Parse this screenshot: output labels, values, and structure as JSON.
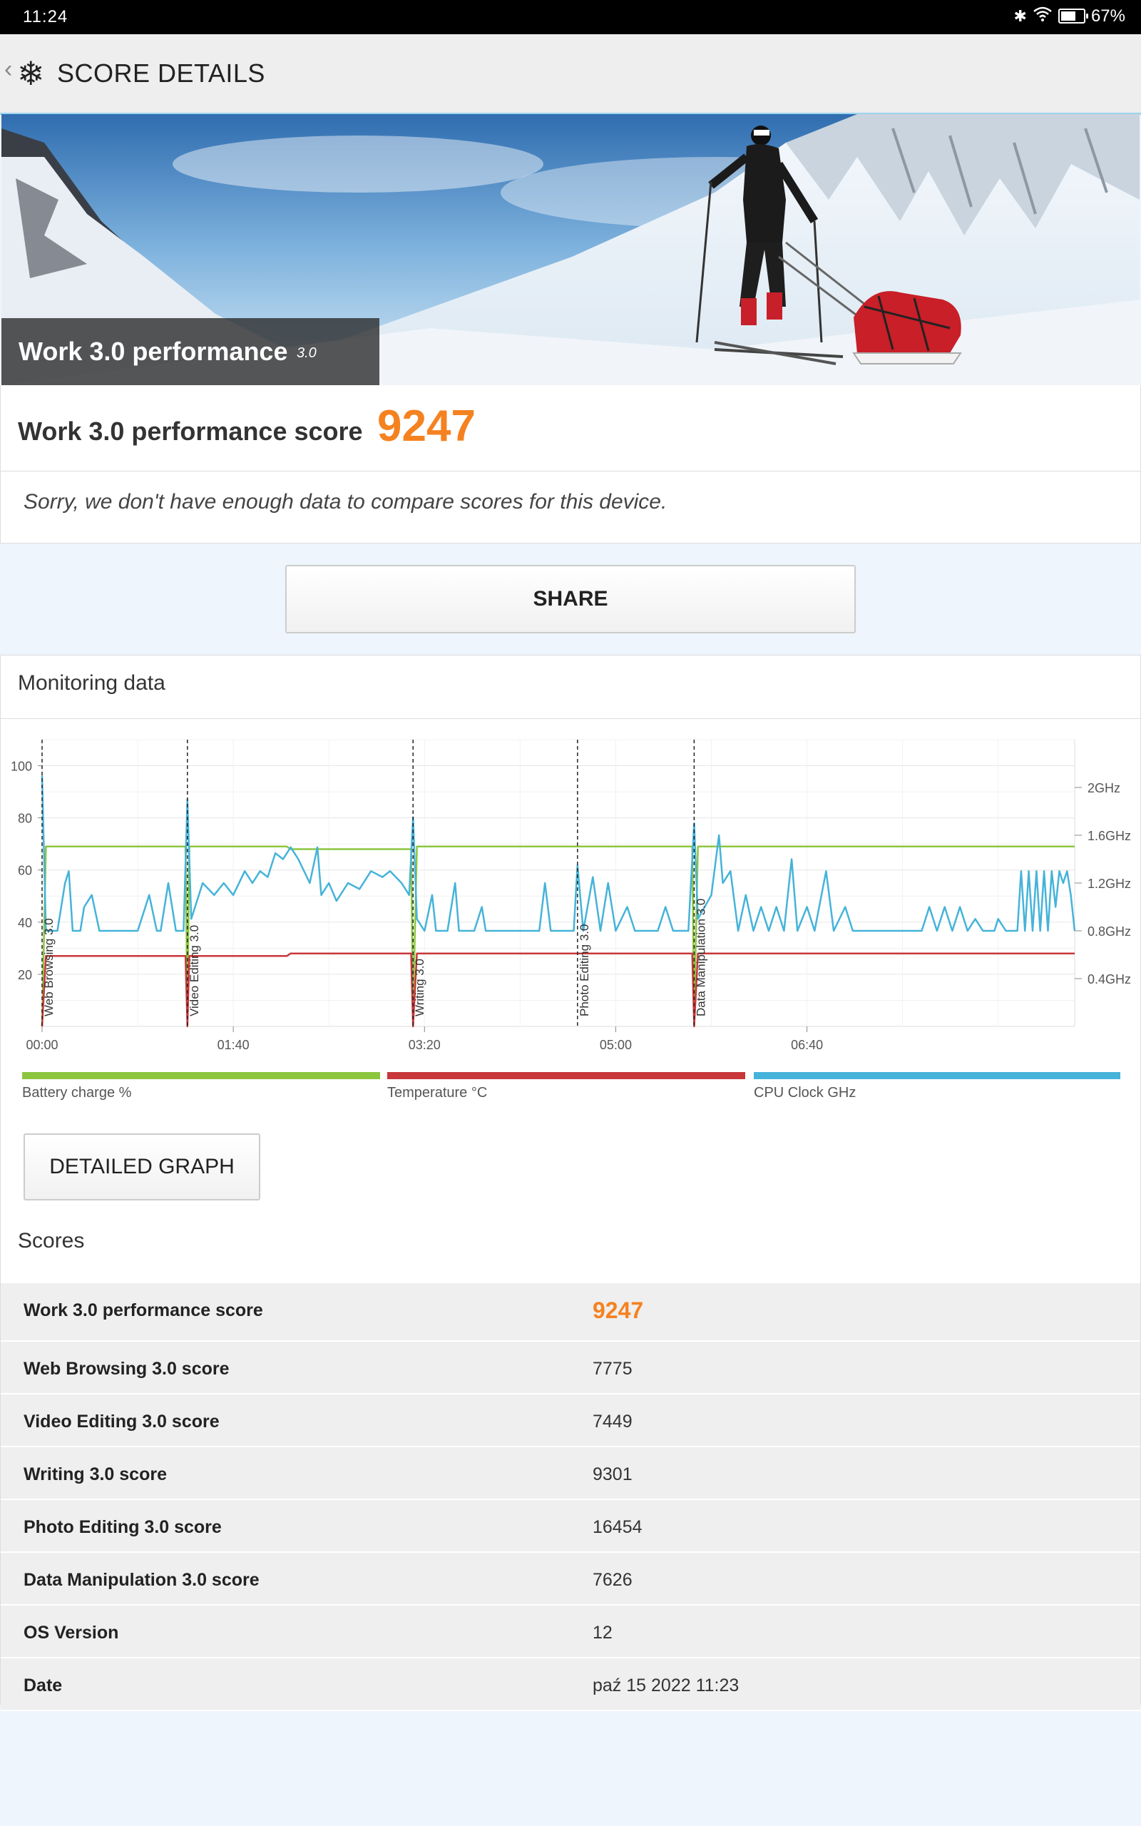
{
  "status_bar": {
    "time": "11:24",
    "battery": "67%",
    "battery_level": 0.67
  },
  "app_bar": {
    "title": "SCORE DETAILS"
  },
  "hero": {
    "title": "Work 3.0 performance",
    "version": "3.0"
  },
  "score": {
    "label": "Work 3.0 performance score",
    "value": "9247"
  },
  "compare_note": "Sorry, we don't have enough data to compare scores for this device.",
  "share_label": "SHARE",
  "monitoring": {
    "title": "Monitoring data"
  },
  "detailed_graph_label": "DETAILED GRAPH",
  "scores_title": "Scores",
  "colors": {
    "accent": "#f58220",
    "battery": "#8cc63f",
    "temperature": "#c8373a",
    "cpu": "#45b3d9"
  },
  "chart_data": {
    "type": "line",
    "x_ticks": [
      "00:00",
      "01:40",
      "03:20",
      "05:00",
      "06:40"
    ],
    "x_range_seconds": [
      0,
      540
    ],
    "y_left_ticks": [
      "100",
      "80",
      "60",
      "40",
      "20"
    ],
    "y_left_range": [
      0,
      110
    ],
    "y_right_ticks": [
      "2GHz",
      "1.6GHz",
      "1.2GHz",
      "0.8GHz",
      "0.4GHz"
    ],
    "y_right_range_ghz": [
      0,
      2.4
    ],
    "grid": true,
    "legend_placement": "bottom",
    "markers": [
      {
        "label": "Web Browsing 3.0",
        "t": 0
      },
      {
        "label": "Video Editing 3.0",
        "t": 76
      },
      {
        "label": "Writing 3.0",
        "t": 194
      },
      {
        "label": "Photo Editing 3.0",
        "t": 280
      },
      {
        "label": "Data Manipulation 3.0",
        "t": 341
      }
    ],
    "series": [
      {
        "name": "Battery charge %",
        "axis": "left",
        "points": [
          [
            0,
            0
          ],
          [
            2,
            69
          ],
          [
            75,
            69
          ],
          [
            76,
            5
          ],
          [
            77,
            69
          ],
          [
            128,
            69
          ],
          [
            130,
            68
          ],
          [
            193,
            68
          ],
          [
            194,
            5
          ],
          [
            196,
            69
          ],
          [
            340,
            69
          ],
          [
            341,
            5
          ],
          [
            343,
            69
          ],
          [
            540,
            69
          ]
        ]
      },
      {
        "name": "Temperature °C",
        "axis": "left",
        "points": [
          [
            0,
            0
          ],
          [
            2,
            27
          ],
          [
            75,
            27
          ],
          [
            76,
            0
          ],
          [
            77,
            27
          ],
          [
            128,
            27
          ],
          [
            130,
            28
          ],
          [
            193,
            28
          ],
          [
            194,
            0
          ],
          [
            196,
            28
          ],
          [
            340,
            28
          ],
          [
            341,
            0
          ],
          [
            343,
            28
          ],
          [
            540,
            28
          ]
        ]
      },
      {
        "name": "CPU Clock GHz",
        "axis": "right",
        "points": [
          [
            0,
            2.1
          ],
          [
            2,
            0.8
          ],
          [
            8,
            0.8
          ],
          [
            12,
            1.2
          ],
          [
            14,
            1.3
          ],
          [
            16,
            0.8
          ],
          [
            20,
            0.8
          ],
          [
            22,
            1.0
          ],
          [
            26,
            1.1
          ],
          [
            30,
            0.8
          ],
          [
            50,
            0.8
          ],
          [
            56,
            1.1
          ],
          [
            60,
            0.8
          ],
          [
            62,
            0.8
          ],
          [
            66,
            1.2
          ],
          [
            70,
            0.8
          ],
          [
            74,
            0.8
          ],
          [
            76,
            1.9
          ],
          [
            78,
            0.9
          ],
          [
            84,
            1.2
          ],
          [
            90,
            1.1
          ],
          [
            95,
            1.2
          ],
          [
            100,
            1.1
          ],
          [
            106,
            1.3
          ],
          [
            110,
            1.2
          ],
          [
            114,
            1.3
          ],
          [
            118,
            1.25
          ],
          [
            122,
            1.45
          ],
          [
            126,
            1.4
          ],
          [
            130,
            1.5
          ],
          [
            134,
            1.4
          ],
          [
            140,
            1.2
          ],
          [
            144,
            1.5
          ],
          [
            146,
            1.1
          ],
          [
            150,
            1.2
          ],
          [
            154,
            1.05
          ],
          [
            160,
            1.2
          ],
          [
            166,
            1.15
          ],
          [
            172,
            1.3
          ],
          [
            178,
            1.25
          ],
          [
            182,
            1.3
          ],
          [
            188,
            1.2
          ],
          [
            192,
            1.1
          ],
          [
            194,
            1.75
          ],
          [
            196,
            0.9
          ],
          [
            200,
            0.8
          ],
          [
            204,
            1.1
          ],
          [
            206,
            0.8
          ],
          [
            212,
            0.8
          ],
          [
            216,
            1.2
          ],
          [
            218,
            0.8
          ],
          [
            226,
            0.8
          ],
          [
            230,
            1.0
          ],
          [
            232,
            0.8
          ],
          [
            260,
            0.8
          ],
          [
            263,
            1.2
          ],
          [
            266,
            0.8
          ],
          [
            278,
            0.8
          ],
          [
            280,
            1.35
          ],
          [
            283,
            0.8
          ],
          [
            288,
            1.25
          ],
          [
            292,
            0.8
          ],
          [
            296,
            1.2
          ],
          [
            300,
            0.8
          ],
          [
            306,
            1.0
          ],
          [
            310,
            0.8
          ],
          [
            322,
            0.8
          ],
          [
            326,
            1.0
          ],
          [
            330,
            0.8
          ],
          [
            338,
            0.8
          ],
          [
            341,
            1.7
          ],
          [
            343,
            0.9
          ],
          [
            350,
            1.1
          ],
          [
            354,
            1.6
          ],
          [
            356,
            1.2
          ],
          [
            360,
            1.3
          ],
          [
            364,
            0.8
          ],
          [
            368,
            1.1
          ],
          [
            372,
            0.8
          ],
          [
            376,
            1.0
          ],
          [
            380,
            0.8
          ],
          [
            384,
            1.0
          ],
          [
            388,
            0.8
          ],
          [
            392,
            1.4
          ],
          [
            395,
            0.8
          ],
          [
            400,
            1.0
          ],
          [
            404,
            0.8
          ],
          [
            410,
            1.3
          ],
          [
            414,
            0.8
          ],
          [
            420,
            1.0
          ],
          [
            424,
            0.8
          ],
          [
            460,
            0.8
          ],
          [
            464,
            1.0
          ],
          [
            468,
            0.8
          ],
          [
            472,
            1.0
          ],
          [
            476,
            0.8
          ],
          [
            480,
            1.0
          ],
          [
            484,
            0.8
          ],
          [
            488,
            0.9
          ],
          [
            492,
            0.8
          ],
          [
            496,
            0.8
          ],
          [
            498,
            0.8
          ],
          [
            500,
            0.9
          ],
          [
            504,
            0.8
          ],
          [
            510,
            0.8
          ],
          [
            512,
            1.3
          ],
          [
            514,
            0.8
          ],
          [
            516,
            1.3
          ],
          [
            518,
            0.8
          ],
          [
            520,
            1.3
          ],
          [
            522,
            0.8
          ],
          [
            524,
            1.3
          ],
          [
            526,
            0.8
          ],
          [
            528,
            1.3
          ],
          [
            530,
            1.0
          ],
          [
            532,
            1.3
          ],
          [
            534,
            1.2
          ],
          [
            536,
            1.3
          ],
          [
            538,
            1.1
          ],
          [
            540,
            0.8
          ]
        ]
      }
    ]
  },
  "scores": [
    {
      "label": "Work 3.0 performance score",
      "value": "9247"
    },
    {
      "label": "Web Browsing 3.0 score",
      "value": "7775"
    },
    {
      "label": "Video Editing 3.0 score",
      "value": "7449"
    },
    {
      "label": "Writing 3.0 score",
      "value": "9301"
    },
    {
      "label": "Photo Editing 3.0 score",
      "value": "16454"
    },
    {
      "label": "Data Manipulation 3.0 score",
      "value": "7626"
    },
    {
      "label": "OS Version",
      "value": "12"
    },
    {
      "label": "Date",
      "value": "paź 15 2022 11:23"
    }
  ]
}
